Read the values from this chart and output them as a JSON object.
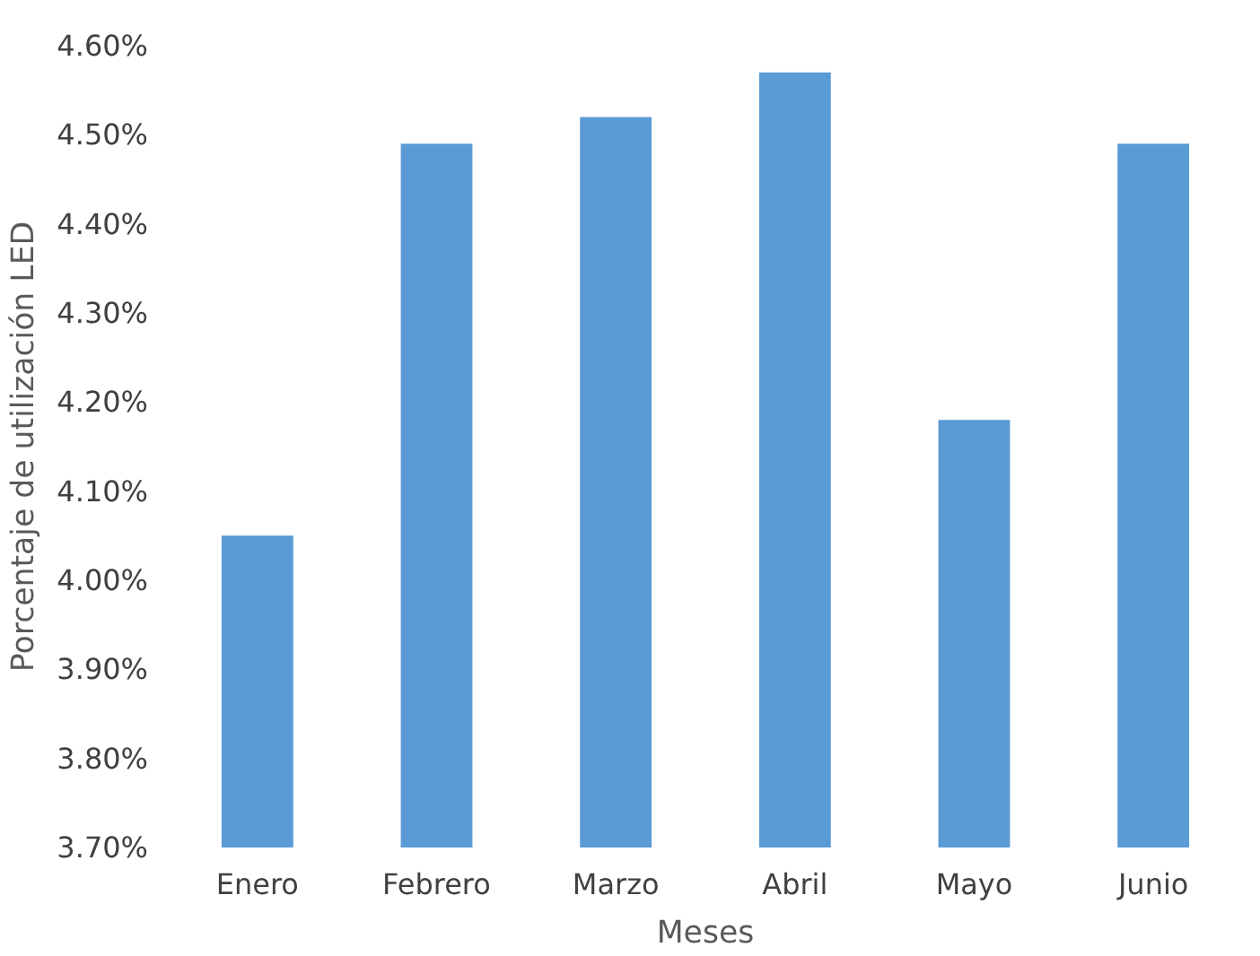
{
  "chart_data": {
    "type": "bar",
    "xlabel": "Meses",
    "ylabel": "Porcentaje de utilización LED",
    "categories": [
      "Enero",
      "Febrero",
      "Marzo",
      "Abril",
      "Mayo",
      "Junio"
    ],
    "values": [
      4.05,
      4.49,
      4.52,
      4.57,
      4.18,
      4.49
    ],
    "color": "#5b9bd5",
    "ylim": [
      3.7,
      4.6
    ],
    "yticks": [
      {
        "value": 3.7,
        "label": "3.70%"
      },
      {
        "value": 3.8,
        "label": "3.80%"
      },
      {
        "value": 3.9,
        "label": "3.90%"
      },
      {
        "value": 4.0,
        "label": "4.00%"
      },
      {
        "value": 4.1,
        "label": "4.10%"
      },
      {
        "value": 4.2,
        "label": "4.20%"
      },
      {
        "value": 4.3,
        "label": "4.30%"
      },
      {
        "value": 4.4,
        "label": "4.40%"
      },
      {
        "value": 4.5,
        "label": "4.50%"
      },
      {
        "value": 4.6,
        "label": "4.60%"
      }
    ],
    "grid": false
  }
}
